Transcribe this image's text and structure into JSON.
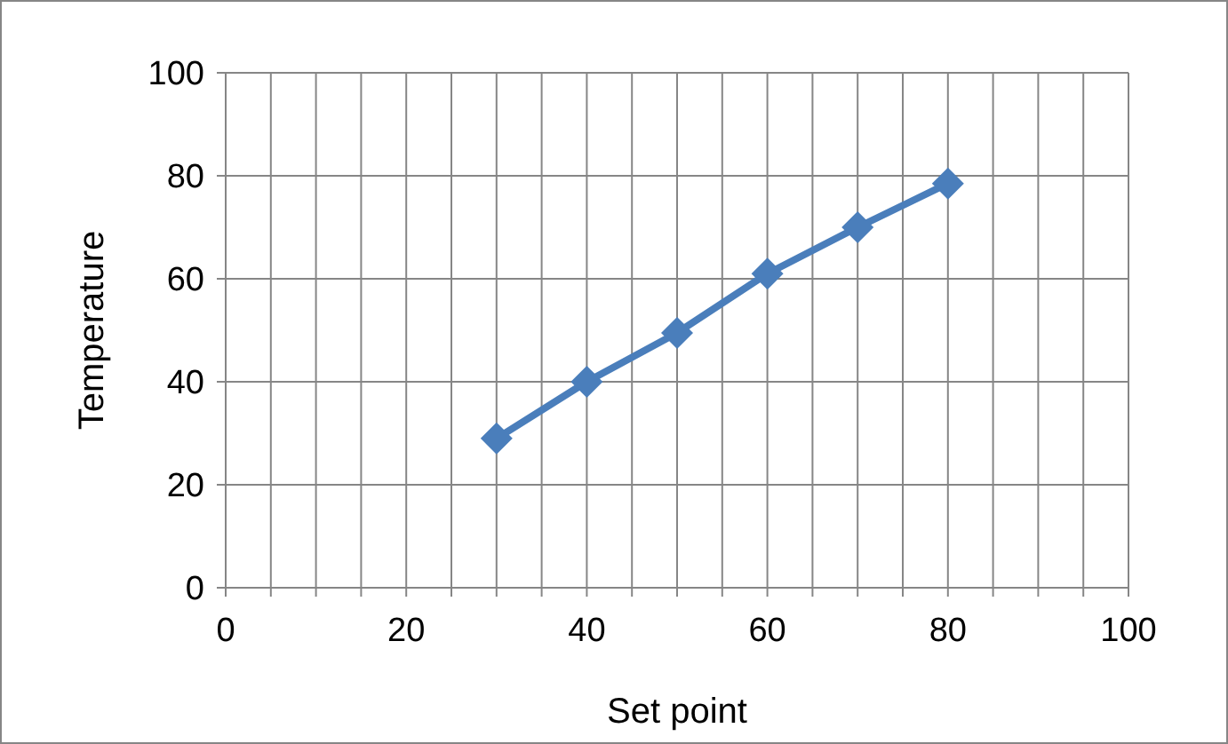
{
  "chart_data": {
    "type": "line",
    "xlabel": "Set point",
    "ylabel": "Temperature",
    "x": [
      30,
      40,
      50,
      60,
      70,
      80
    ],
    "series": [
      {
        "color": "#4a7ebb",
        "values": [
          29,
          40,
          49.5,
          61,
          70,
          78.5
        ]
      }
    ],
    "xlim": [
      0,
      100
    ],
    "ylim": [
      0,
      100
    ],
    "xticks": [
      0,
      {
        "value": 5,
        "label": null
      },
      {
        "value": 10,
        "label": null
      },
      {
        "value": 15,
        "label": null
      },
      20,
      {
        "value": 25,
        "label": null
      },
      {
        "value": 30,
        "label": null
      },
      {
        "value": 35,
        "label": null
      },
      40,
      {
        "value": 45,
        "label": null
      },
      {
        "value": 50,
        "label": null
      },
      {
        "value": 55,
        "label": null
      },
      60,
      {
        "value": 65,
        "label": null
      },
      {
        "value": 70,
        "label": null
      },
      {
        "value": 75,
        "label": null
      },
      80,
      {
        "value": 85,
        "label": null
      },
      {
        "value": 90,
        "label": null
      },
      {
        "value": 95,
        "label": null
      },
      100
    ],
    "yticks": [
      0,
      20,
      40,
      60,
      80,
      100
    ],
    "grid": true,
    "marker": "diamond",
    "line_style": "solid"
  }
}
